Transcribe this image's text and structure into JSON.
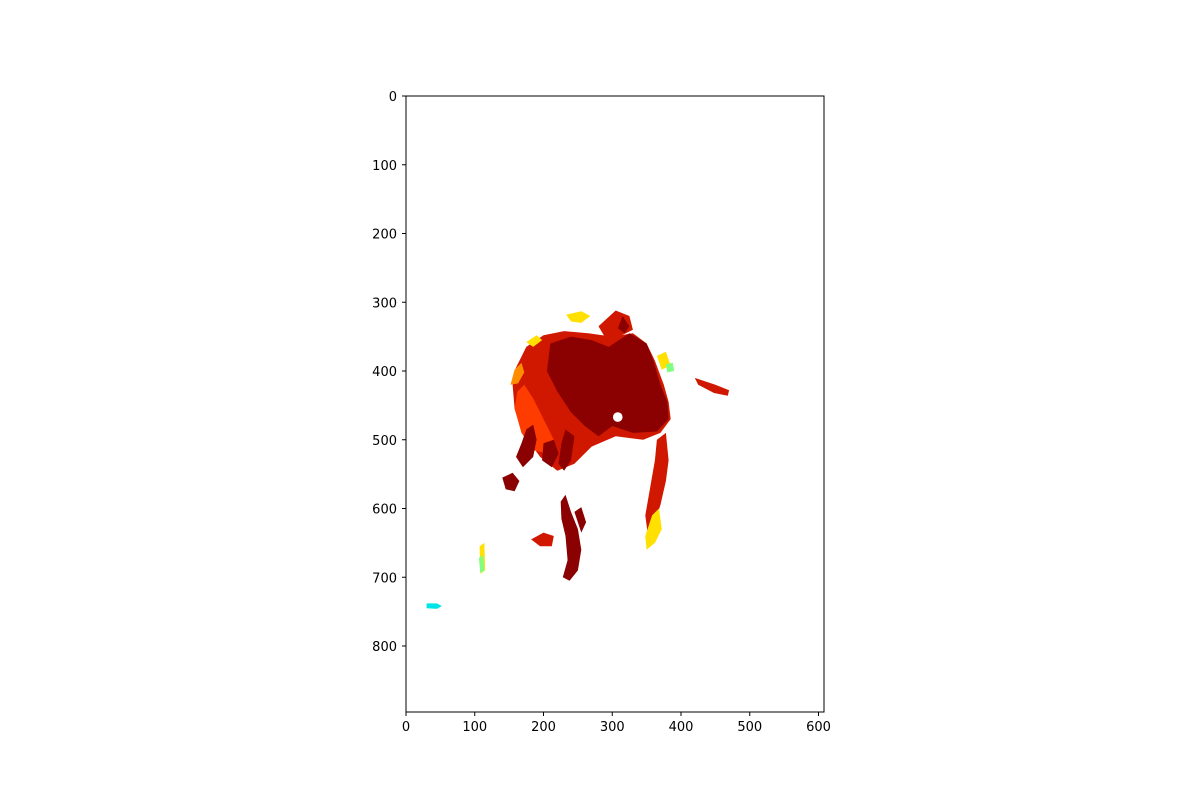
{
  "chart_data": {
    "type": "heatmap",
    "title": "",
    "xlabel": "",
    "ylabel": "",
    "xlim": [
      0,
      608
    ],
    "ylim": [
      896,
      0
    ],
    "y_axis_inverted": true,
    "x_ticks": [
      0,
      100,
      200,
      300,
      400,
      500,
      600
    ],
    "y_ticks": [
      0,
      100,
      200,
      300,
      400,
      500,
      600,
      700,
      800
    ],
    "grid": false,
    "legend": "none",
    "colormap": "jet",
    "background_color": "#ffffff",
    "colors": {
      "max": "#8b0000",
      "high": "#d01800",
      "mid_high": "#ff3c00",
      "mid": "#ff8c00",
      "mid_low": "#ffe000",
      "low": "#7fff7f",
      "lowest": "#00e5e5"
    },
    "regions": [
      {
        "level": "high",
        "points": [
          [
            155,
            420
          ],
          [
            160,
            395
          ],
          [
            175,
            365
          ],
          [
            200,
            348
          ],
          [
            230,
            342
          ],
          [
            265,
            345
          ],
          [
            300,
            350
          ],
          [
            330,
            345
          ],
          [
            350,
            360
          ],
          [
            362,
            385
          ],
          [
            375,
            420
          ],
          [
            382,
            445
          ],
          [
            385,
            470
          ],
          [
            370,
            490
          ],
          [
            345,
            500
          ],
          [
            305,
            495
          ],
          [
            270,
            510
          ],
          [
            245,
            535
          ],
          [
            220,
            545
          ],
          [
            195,
            525
          ],
          [
            170,
            490
          ],
          [
            158,
            455
          ]
        ]
      },
      {
        "level": "max",
        "points": [
          [
            210,
            360
          ],
          [
            240,
            350
          ],
          [
            270,
            355
          ],
          [
            295,
            365
          ],
          [
            325,
            345
          ],
          [
            350,
            360
          ],
          [
            360,
            385
          ],
          [
            370,
            420
          ],
          [
            380,
            445
          ],
          [
            382,
            470
          ],
          [
            365,
            488
          ],
          [
            330,
            490
          ],
          [
            300,
            480
          ],
          [
            280,
            495
          ],
          [
            260,
            480
          ],
          [
            240,
            460
          ],
          [
            220,
            430
          ],
          [
            205,
            400
          ]
        ]
      },
      {
        "level": "mid_high",
        "points": [
          [
            158,
            455
          ],
          [
            162,
            430
          ],
          [
            172,
            420
          ],
          [
            185,
            440
          ],
          [
            200,
            470
          ],
          [
            215,
            500
          ],
          [
            205,
            520
          ],
          [
            185,
            515
          ],
          [
            168,
            490
          ]
        ]
      },
      {
        "level": "mid",
        "points": [
          [
            152,
            420
          ],
          [
            158,
            398
          ],
          [
            168,
            388
          ],
          [
            172,
            402
          ],
          [
            163,
            418
          ]
        ]
      },
      {
        "level": "mid_low",
        "points": [
          [
            175,
            358
          ],
          [
            190,
            348
          ],
          [
            198,
            355
          ],
          [
            185,
            365
          ]
        ]
      },
      {
        "level": "high",
        "points": [
          [
            280,
            335
          ],
          [
            305,
            312
          ],
          [
            325,
            320
          ],
          [
            330,
            340
          ],
          [
            310,
            350
          ],
          [
            290,
            352
          ]
        ]
      },
      {
        "level": "max",
        "points": [
          [
            315,
            320
          ],
          [
            325,
            335
          ],
          [
            318,
            345
          ],
          [
            308,
            338
          ]
        ]
      },
      {
        "level": "mid_low",
        "points": [
          [
            233,
            318
          ],
          [
            255,
            313
          ],
          [
            268,
            320
          ],
          [
            255,
            330
          ],
          [
            240,
            328
          ]
        ]
      },
      {
        "level": "mid_low",
        "points": [
          [
            365,
            378
          ],
          [
            378,
            372
          ],
          [
            385,
            392
          ],
          [
            372,
            398
          ]
        ]
      },
      {
        "level": "low",
        "points": [
          [
            378,
            390
          ],
          [
            388,
            388
          ],
          [
            390,
            400
          ],
          [
            380,
            402
          ]
        ]
      },
      {
        "level": "high",
        "points": [
          [
            420,
            410
          ],
          [
            450,
            420
          ],
          [
            470,
            428
          ],
          [
            468,
            436
          ],
          [
            448,
            432
          ],
          [
            425,
            420
          ]
        ]
      },
      {
        "level": "high",
        "points": [
          [
            365,
            500
          ],
          [
            378,
            490
          ],
          [
            382,
            530
          ],
          [
            378,
            560
          ],
          [
            370,
            595
          ],
          [
            360,
            625
          ],
          [
            352,
            640
          ],
          [
            348,
            610
          ],
          [
            355,
            570
          ],
          [
            362,
            530
          ]
        ]
      },
      {
        "level": "mid_low",
        "points": [
          [
            358,
            610
          ],
          [
            368,
            600
          ],
          [
            372,
            630
          ],
          [
            362,
            650
          ],
          [
            350,
            660
          ],
          [
            348,
            640
          ]
        ]
      },
      {
        "level": "max",
        "points": [
          [
            175,
            485
          ],
          [
            185,
            478
          ],
          [
            190,
            500
          ],
          [
            185,
            525
          ],
          [
            170,
            540
          ],
          [
            160,
            525
          ],
          [
            168,
            505
          ]
        ]
      },
      {
        "level": "max",
        "points": [
          [
            200,
            505
          ],
          [
            215,
            500
          ],
          [
            222,
            520
          ],
          [
            212,
            540
          ],
          [
            198,
            530
          ]
        ]
      },
      {
        "level": "max",
        "points": [
          [
            232,
            485
          ],
          [
            245,
            495
          ],
          [
            240,
            530
          ],
          [
            230,
            545
          ],
          [
            222,
            535
          ],
          [
            226,
            505
          ]
        ]
      },
      {
        "level": "max",
        "points": [
          [
            140,
            555
          ],
          [
            155,
            548
          ],
          [
            165,
            560
          ],
          [
            158,
            575
          ],
          [
            145,
            572
          ]
        ]
      },
      {
        "level": "high",
        "points": [
          [
            182,
            645
          ],
          [
            200,
            635
          ],
          [
            215,
            640
          ],
          [
            212,
            655
          ],
          [
            195,
            655
          ]
        ]
      },
      {
        "level": "max",
        "points": [
          [
            225,
            590
          ],
          [
            232,
            580
          ],
          [
            240,
            605
          ],
          [
            250,
            630
          ],
          [
            255,
            660
          ],
          [
            250,
            690
          ],
          [
            238,
            705
          ],
          [
            228,
            700
          ],
          [
            235,
            675
          ],
          [
            232,
            640
          ],
          [
            226,
            615
          ]
        ]
      },
      {
        "level": "max",
        "points": [
          [
            245,
            605
          ],
          [
            255,
            598
          ],
          [
            262,
            620
          ],
          [
            255,
            635
          ]
        ]
      },
      {
        "level": "mid_low",
        "points": [
          [
            107,
            655
          ],
          [
            114,
            650
          ],
          [
            115,
            690
          ],
          [
            108,
            695
          ]
        ]
      },
      {
        "level": "low",
        "points": [
          [
            106,
            672
          ],
          [
            112,
            668
          ],
          [
            114,
            690
          ],
          [
            108,
            694
          ]
        ]
      },
      {
        "level": "lowest",
        "points": [
          [
            30,
            738
          ],
          [
            45,
            738
          ],
          [
            52,
            742
          ],
          [
            45,
            746
          ],
          [
            30,
            745
          ]
        ]
      }
    ],
    "holes": [
      {
        "cx": 308,
        "cy": 467,
        "r": 7
      }
    ]
  }
}
